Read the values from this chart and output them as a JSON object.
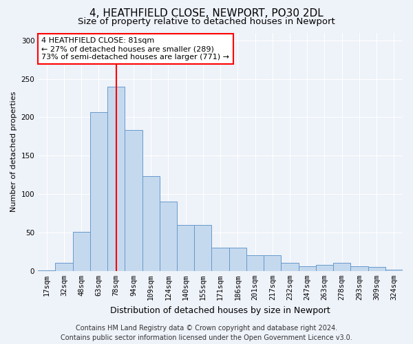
{
  "title1": "4, HEATHFIELD CLOSE, NEWPORT, PO30 2DL",
  "title2": "Size of property relative to detached houses in Newport",
  "xlabel": "Distribution of detached houses by size in Newport",
  "ylabel": "Number of detached properties",
  "footer1": "Contains HM Land Registry data © Crown copyright and database right 2024.",
  "footer2": "Contains public sector information licensed under the Open Government Licence v3.0.",
  "categories": [
    "17sqm",
    "32sqm",
    "48sqm",
    "63sqm",
    "78sqm",
    "94sqm",
    "109sqm",
    "124sqm",
    "140sqm",
    "155sqm",
    "171sqm",
    "186sqm",
    "201sqm",
    "217sqm",
    "232sqm",
    "247sqm",
    "263sqm",
    "278sqm",
    "293sqm",
    "309sqm",
    "324sqm"
  ],
  "values": [
    1,
    11,
    51,
    207,
    240,
    183,
    123,
    90,
    60,
    60,
    30,
    30,
    20,
    20,
    11,
    6,
    8,
    11,
    6,
    5,
    2
  ],
  "bar_color": "#c5d9ee",
  "bar_edge_color": "#6699cc",
  "red_line_index": 4,
  "annotation_text": "4 HEATHFIELD CLOSE: 81sqm\n← 27% of detached houses are smaller (289)\n73% of semi-detached houses are larger (771) →",
  "annotation_box_color": "white",
  "annotation_box_edge": "red",
  "ylim": [
    0,
    310
  ],
  "yticks": [
    0,
    50,
    100,
    150,
    200,
    250,
    300
  ],
  "background_color": "#eef2f9",
  "grid_color": "white",
  "title1_fontsize": 11,
  "title2_fontsize": 9.5,
  "xlabel_fontsize": 9,
  "ylabel_fontsize": 8,
  "tick_fontsize": 7.5,
  "footer_fontsize": 7,
  "ann_fontsize": 8
}
